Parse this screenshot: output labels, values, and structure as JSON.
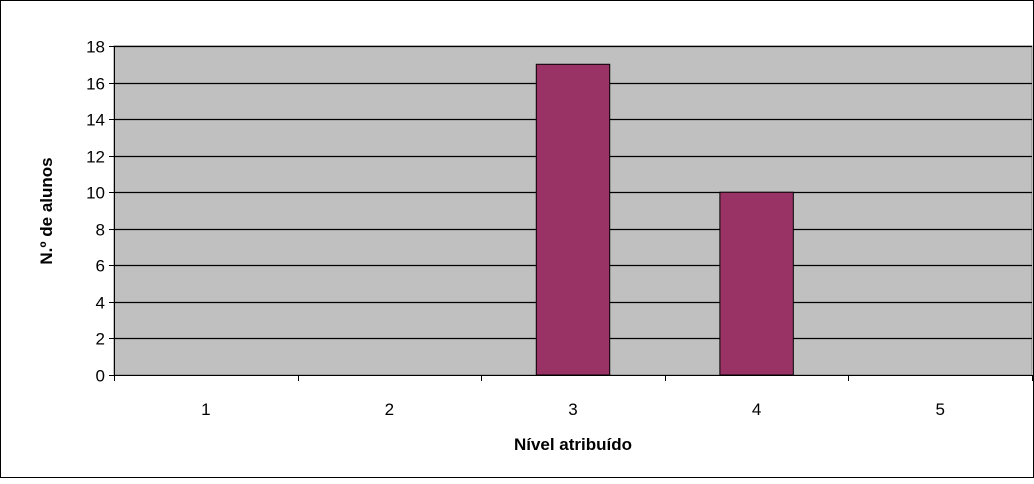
{
  "chart_data": {
    "type": "bar",
    "categories": [
      "1",
      "2",
      "3",
      "4",
      "5"
    ],
    "values": [
      0,
      0,
      17,
      10,
      0
    ],
    "title": "",
    "xlabel": "Nível atribuído",
    "ylabel": "N.º de alunos",
    "ylim": [
      0,
      18
    ],
    "yticks": [
      0,
      2,
      4,
      6,
      8,
      10,
      12,
      14,
      16,
      18
    ],
    "grid": true,
    "legend": false
  },
  "colors": {
    "bar_fill": "#993366",
    "plot_background": "#c0c0c0",
    "gridline": "#000000",
    "frame_border": "#000000",
    "page_background": "#ffffff"
  }
}
